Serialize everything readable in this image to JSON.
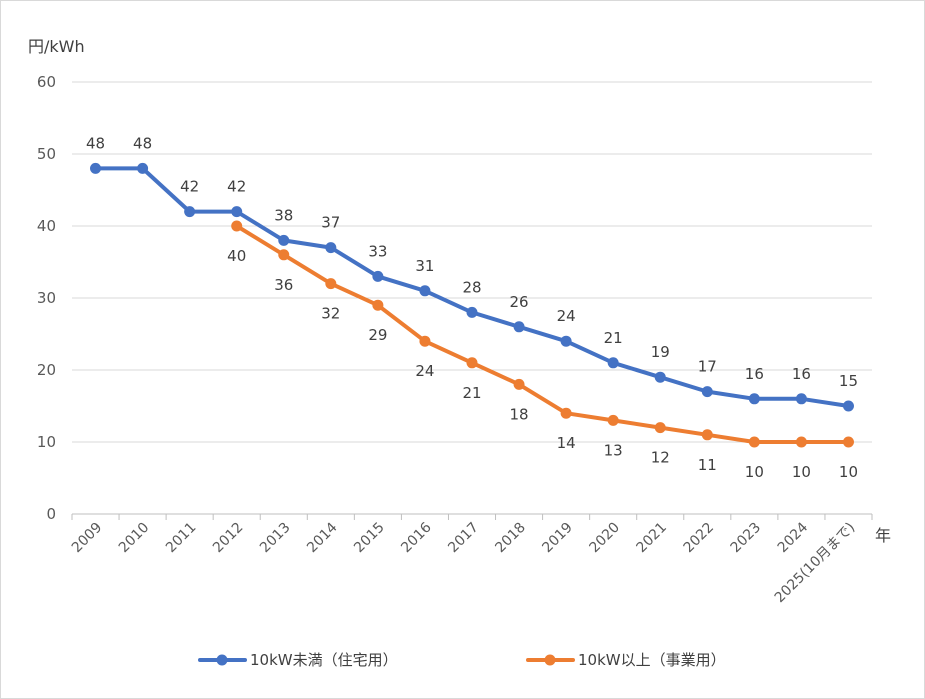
{
  "chart_data": {
    "type": "line",
    "ylabel": "円/kWh",
    "xlabel": "年",
    "ylim": [
      0,
      60
    ],
    "yticks": [
      0,
      10,
      20,
      30,
      40,
      50,
      60
    ],
    "grid": true,
    "legend_position": "bottom",
    "categories": [
      "2009",
      "2010",
      "2011",
      "2012",
      "2013",
      "2014",
      "2015",
      "2016",
      "2017",
      "2018",
      "2019",
      "2020",
      "2021",
      "2022",
      "2023",
      "2024",
      "2025(10月まで)"
    ],
    "series": [
      {
        "name": "10kW未満（住宅用）",
        "color": "#4472c4",
        "values": [
          48,
          48,
          42,
          42,
          38,
          37,
          33,
          31,
          28,
          26,
          24,
          21,
          19,
          17,
          16,
          16,
          15
        ],
        "label_position": "above"
      },
      {
        "name": "10kW以上（事業用）",
        "color": "#ed7d31",
        "values": [
          null,
          null,
          null,
          40,
          36,
          32,
          29,
          24,
          21,
          18,
          14,
          13,
          12,
          11,
          10,
          10,
          10
        ],
        "label_position": "below"
      }
    ]
  }
}
